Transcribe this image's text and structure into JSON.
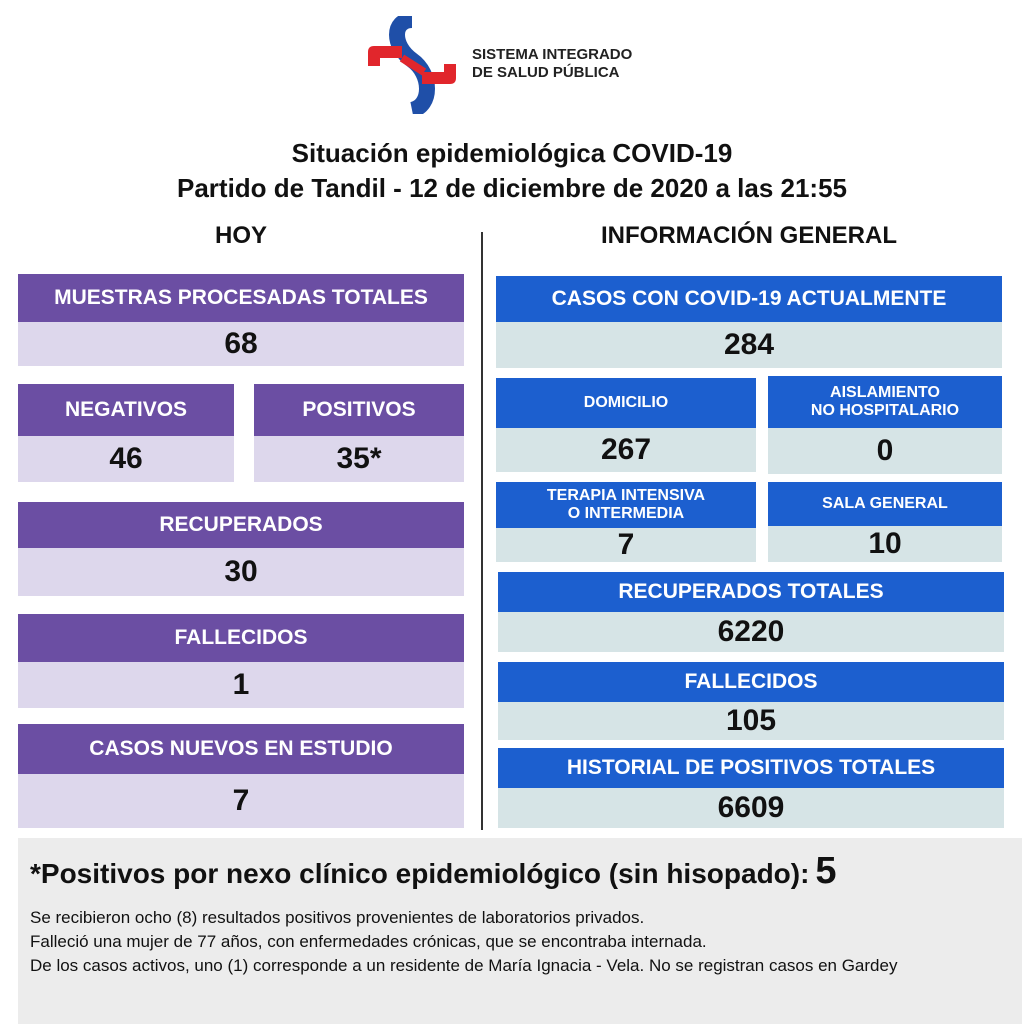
{
  "logo": {
    "line1": "SISTEMA INTEGRADO",
    "line2": "DE SALUD PÚBLICA"
  },
  "title": {
    "line1": "Situación epidemiológica COVID-19",
    "line2": "Partido de Tandil - 12 de diciembre de 2020 a las 21:55"
  },
  "today": {
    "heading": "HOY",
    "cards": [
      {
        "label": [
          "MUESTRAS PROCESADAS TOTALES"
        ],
        "value": 68
      },
      {
        "label": [
          "NEGATIVOS"
        ],
        "value": 46
      },
      {
        "label": [
          "POSITIVOS"
        ],
        "value": "35*"
      },
      {
        "label": [
          "RECUPERADOS"
        ],
        "value": 30
      },
      {
        "label": [
          "FALLECIDOS"
        ],
        "value": 1
      },
      {
        "label": [
          "CASOS NUEVOS EN ESTUDIO"
        ],
        "value": 7
      }
    ]
  },
  "general": {
    "heading": "INFORMACIÓN GENERAL",
    "cards": [
      {
        "label": [
          "CASOS CON COVID-19 ACTUALMENTE"
        ],
        "value": 284
      },
      {
        "label": [
          "DOMICILIO"
        ],
        "value": 267
      },
      {
        "label": [
          "AISLAMIENTO",
          "NO HOSPITALARIO"
        ],
        "value": 0
      },
      {
        "label": [
          "TERAPIA INTENSIVA",
          "O INTERMEDIA"
        ],
        "value": 7
      },
      {
        "label": [
          "SALA GENERAL"
        ],
        "value": 10
      },
      {
        "label": [
          "RECUPERADOS TOTALES"
        ],
        "value": 6220
      },
      {
        "label": [
          "FALLECIDOS"
        ],
        "value": 105
      },
      {
        "label": [
          "HISTORIAL DE POSITIVOS TOTALES"
        ],
        "value": 6609
      }
    ]
  },
  "footnote": {
    "label": "*Positivos por nexo clínico epidemiológico (sin hisopado):",
    "value": 5
  },
  "notes": [
    "Se recibieron ocho (8) resultados positivos provenientes de laboratorios privados.",
    "Falleció una mujer de 77 años, con enfermedades crónicas, que se encontraba internada.",
    "De los casos activos, uno (1) corresponde a un residente de María Ignacia - Vela. No se registran casos en Gardey"
  ]
}
